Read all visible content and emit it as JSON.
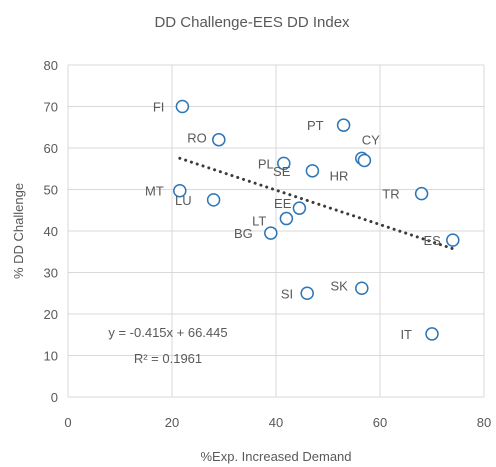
{
  "chart_data": {
    "type": "scatter",
    "title": "DD Challenge-EES DD Index",
    "xlabel": "%Exp. Increased Demand",
    "ylabel": "% DD Challenge",
    "xlim": [
      0,
      80
    ],
    "ylim": [
      0,
      80
    ],
    "x_ticks": [
      "0",
      "20",
      "40",
      "60",
      "80"
    ],
    "y_ticks": [
      "0",
      "10",
      "20",
      "30",
      "40",
      "50",
      "60",
      "70",
      "80"
    ],
    "grid": {
      "horizontal": true,
      "vertical": true
    },
    "points": [
      {
        "label": "FI",
        "x": 22,
        "y": 70
      },
      {
        "label": "RO",
        "x": 29,
        "y": 62
      },
      {
        "label": "PT",
        "x": 53,
        "y": 65.5
      },
      {
        "label": "CY",
        "x": 56.5,
        "y": 57.5
      },
      {
        "label": "PL",
        "x": 41.5,
        "y": 56.3
      },
      {
        "label": "SE",
        "x": 47,
        "y": 54.5
      },
      {
        "label": "HR",
        "x": 57,
        "y": 57
      },
      {
        "label": "MT",
        "x": 21.5,
        "y": 49.7
      },
      {
        "label": "TR",
        "x": 68,
        "y": 49
      },
      {
        "label": "LU",
        "x": 28,
        "y": 47.5
      },
      {
        "label": "EE",
        "x": 44.5,
        "y": 45.5
      },
      {
        "label": "LT",
        "x": 42,
        "y": 43
      },
      {
        "label": "BG",
        "x": 39,
        "y": 39.5
      },
      {
        "label": "ES",
        "x": 74,
        "y": 37.8
      },
      {
        "label": "SI",
        "x": 46,
        "y": 25
      },
      {
        "label": "SK",
        "x": 56.5,
        "y": 26.2
      },
      {
        "label": "IT",
        "x": 70,
        "y": 15.2
      }
    ],
    "trendline": {
      "type": "linear",
      "slope": -0.415,
      "intercept": 66.445,
      "x_range": [
        21.5,
        74
      ],
      "equation_label": "y = -0.415x + 66.445",
      "r2_label": "R² = 0.1961"
    },
    "colors": {
      "marker": "#2e75b6",
      "trendline": "#3b3b3b",
      "grid": "#d9d9d9",
      "text": "#595959"
    }
  }
}
